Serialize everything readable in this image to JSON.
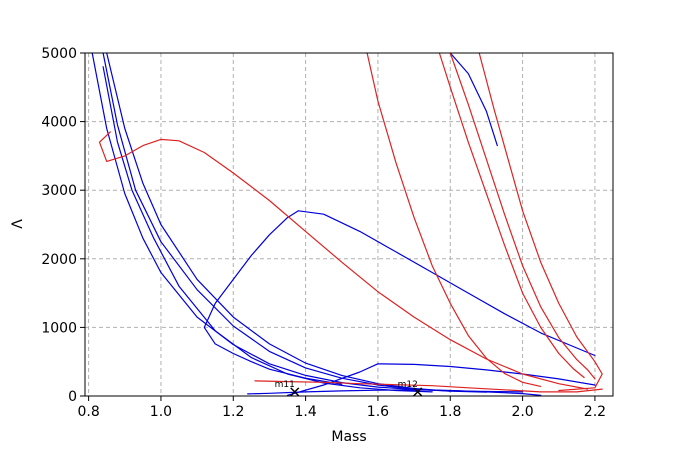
{
  "chart_data": {
    "type": "line",
    "title": "",
    "xlabel": "Mass",
    "ylabel": "Λ",
    "xlim": [
      0.79,
      2.25
    ],
    "ylim": [
      0,
      5000
    ],
    "xticks": [
      0.8,
      1.0,
      1.2,
      1.4,
      1.6,
      1.8,
      2.0,
      2.2
    ],
    "xtick_labels": [
      "0.8",
      "1.0",
      "1.2",
      "1.4",
      "1.6",
      "1.8",
      "2.0",
      "2.2"
    ],
    "yticks": [
      0,
      1000,
      2000,
      3000,
      4000,
      5000
    ],
    "ytick_labels": [
      "0",
      "1000",
      "2000",
      "3000",
      "4000",
      "5000"
    ],
    "grid": true,
    "colors": {
      "blue": "#0000dd",
      "red": "#dd2222"
    },
    "series": [
      {
        "color": "blue",
        "points": [
          [
            0.81,
            5000
          ],
          [
            0.85,
            3900
          ],
          [
            0.9,
            2950
          ],
          [
            0.95,
            2300
          ],
          [
            1.0,
            1800
          ],
          [
            1.1,
            1150
          ],
          [
            1.2,
            750
          ],
          [
            1.3,
            470
          ],
          [
            1.4,
            300
          ],
          [
            1.5,
            195
          ],
          [
            1.6,
            130
          ],
          [
            1.7,
            95
          ],
          [
            1.85,
            70
          ],
          [
            2.0,
            60
          ]
        ]
      },
      {
        "color": "blue",
        "points": [
          [
            0.84,
            5000
          ],
          [
            0.88,
            3950
          ],
          [
            0.93,
            3000
          ],
          [
            1.0,
            2250
          ],
          [
            1.1,
            1550
          ],
          [
            1.2,
            1020
          ],
          [
            1.3,
            650
          ],
          [
            1.4,
            410
          ],
          [
            1.5,
            260
          ],
          [
            1.6,
            160
          ],
          [
            1.7,
            100
          ],
          [
            1.8,
            70
          ],
          [
            1.9,
            55
          ]
        ]
      },
      {
        "color": "blue",
        "points": [
          [
            0.85,
            5000
          ],
          [
            0.9,
            3900
          ],
          [
            0.95,
            3100
          ],
          [
            1.0,
            2500
          ],
          [
            1.1,
            1700
          ],
          [
            1.2,
            1150
          ],
          [
            1.3,
            760
          ],
          [
            1.4,
            480
          ],
          [
            1.5,
            300
          ],
          [
            1.6,
            180
          ],
          [
            1.7,
            110
          ],
          [
            1.8,
            70
          ]
        ]
      },
      {
        "color": "blue",
        "points": [
          [
            0.84,
            4800
          ],
          [
            0.88,
            3700
          ],
          [
            0.92,
            3000
          ],
          [
            0.98,
            2300
          ],
          [
            1.05,
            1600
          ],
          [
            1.15,
            950
          ],
          [
            1.25,
            560
          ],
          [
            1.35,
            320
          ],
          [
            1.45,
            190
          ],
          [
            1.55,
            120
          ],
          [
            1.65,
            80
          ],
          [
            1.75,
            60
          ]
        ]
      },
      {
        "color": "blue",
        "points": [
          [
            1.5,
            170
          ],
          [
            1.4,
            260
          ],
          [
            1.3,
            390
          ],
          [
            1.25,
            500
          ],
          [
            1.2,
            620
          ],
          [
            1.15,
            760
          ],
          [
            1.12,
            1000
          ],
          [
            1.15,
            1350
          ],
          [
            1.2,
            1700
          ],
          [
            1.25,
            2050
          ],
          [
            1.3,
            2350
          ],
          [
            1.35,
            2600
          ],
          [
            1.38,
            2700
          ],
          [
            1.45,
            2650
          ],
          [
            1.55,
            2400
          ],
          [
            1.65,
            2100
          ],
          [
            1.75,
            1800
          ],
          [
            1.85,
            1500
          ],
          [
            1.95,
            1200
          ],
          [
            2.05,
            920
          ],
          [
            2.15,
            700
          ],
          [
            2.2,
            590
          ]
        ]
      },
      {
        "color": "blue",
        "points": [
          [
            1.35,
            10
          ],
          [
            1.45,
            160
          ],
          [
            1.55,
            350
          ],
          [
            1.6,
            470
          ],
          [
            1.7,
            460
          ],
          [
            1.8,
            430
          ],
          [
            1.9,
            380
          ],
          [
            2.0,
            320
          ],
          [
            2.1,
            250
          ],
          [
            2.2,
            160
          ]
        ]
      },
      {
        "color": "blue",
        "points": [
          [
            1.8,
            5000
          ],
          [
            1.85,
            4700
          ],
          [
            1.9,
            4150
          ],
          [
            1.93,
            3650
          ]
        ]
      },
      {
        "color": "blue",
        "points": [
          [
            1.24,
            30
          ],
          [
            1.3,
            40
          ],
          [
            1.4,
            60
          ],
          [
            1.5,
            75
          ],
          [
            1.6,
            85
          ],
          [
            1.7,
            90
          ],
          [
            1.8,
            80
          ],
          [
            1.9,
            60
          ],
          [
            2.0,
            35
          ],
          [
            2.05,
            10
          ]
        ]
      },
      {
        "color": "red",
        "points": [
          [
            0.86,
            3850
          ],
          [
            0.83,
            3700
          ],
          [
            0.85,
            3420
          ],
          [
            0.9,
            3500
          ],
          [
            0.95,
            3650
          ],
          [
            1.0,
            3740
          ],
          [
            1.05,
            3720
          ],
          [
            1.12,
            3550
          ],
          [
            1.2,
            3250
          ],
          [
            1.3,
            2850
          ],
          [
            1.4,
            2400
          ],
          [
            1.5,
            1950
          ],
          [
            1.6,
            1520
          ],
          [
            1.7,
            1150
          ],
          [
            1.8,
            820
          ],
          [
            1.9,
            540
          ],
          [
            2.0,
            320
          ],
          [
            2.1,
            180
          ],
          [
            2.18,
            100
          ]
        ]
      },
      {
        "color": "red",
        "points": [
          [
            1.57,
            5000
          ],
          [
            1.6,
            4300
          ],
          [
            1.65,
            3400
          ],
          [
            1.7,
            2600
          ],
          [
            1.75,
            1900
          ],
          [
            1.8,
            1350
          ],
          [
            1.85,
            880
          ],
          [
            1.9,
            550
          ],
          [
            1.95,
            330
          ],
          [
            2.0,
            200
          ],
          [
            2.05,
            140
          ]
        ]
      },
      {
        "color": "red",
        "points": [
          [
            1.77,
            5000
          ],
          [
            1.8,
            4500
          ],
          [
            1.85,
            3700
          ],
          [
            1.9,
            2950
          ],
          [
            1.95,
            2200
          ],
          [
            2.0,
            1500
          ],
          [
            2.05,
            1000
          ],
          [
            2.1,
            620
          ],
          [
            2.14,
            400
          ],
          [
            2.17,
            270
          ]
        ]
      },
      {
        "color": "red",
        "points": [
          [
            1.8,
            5000
          ],
          [
            1.85,
            4250
          ],
          [
            1.9,
            3450
          ],
          [
            1.95,
            2650
          ],
          [
            2.0,
            1900
          ],
          [
            2.05,
            1300
          ],
          [
            2.1,
            850
          ],
          [
            2.15,
            530
          ],
          [
            2.18,
            380
          ],
          [
            2.2,
            250
          ]
        ]
      },
      {
        "color": "red",
        "points": [
          [
            1.88,
            5000
          ],
          [
            1.92,
            4200
          ],
          [
            1.96,
            3450
          ],
          [
            2.0,
            2700
          ],
          [
            2.05,
            1950
          ],
          [
            2.1,
            1350
          ],
          [
            2.15,
            860
          ],
          [
            2.2,
            500
          ],
          [
            2.22,
            320
          ],
          [
            2.2,
            120
          ],
          [
            2.1,
            80
          ]
        ]
      },
      {
        "color": "red",
        "points": [
          [
            1.26,
            220
          ],
          [
            1.35,
            210
          ],
          [
            1.45,
            200
          ],
          [
            1.55,
            180
          ],
          [
            1.65,
            165
          ],
          [
            1.75,
            150
          ],
          [
            1.85,
            120
          ],
          [
            1.95,
            90
          ],
          [
            2.05,
            60
          ],
          [
            2.15,
            60
          ],
          [
            2.22,
            100
          ]
        ]
      }
    ],
    "markers": [
      {
        "label": "m11",
        "x": 1.37,
        "y": 60
      },
      {
        "label": "m12",
        "x": 1.71,
        "y": 60
      }
    ]
  }
}
